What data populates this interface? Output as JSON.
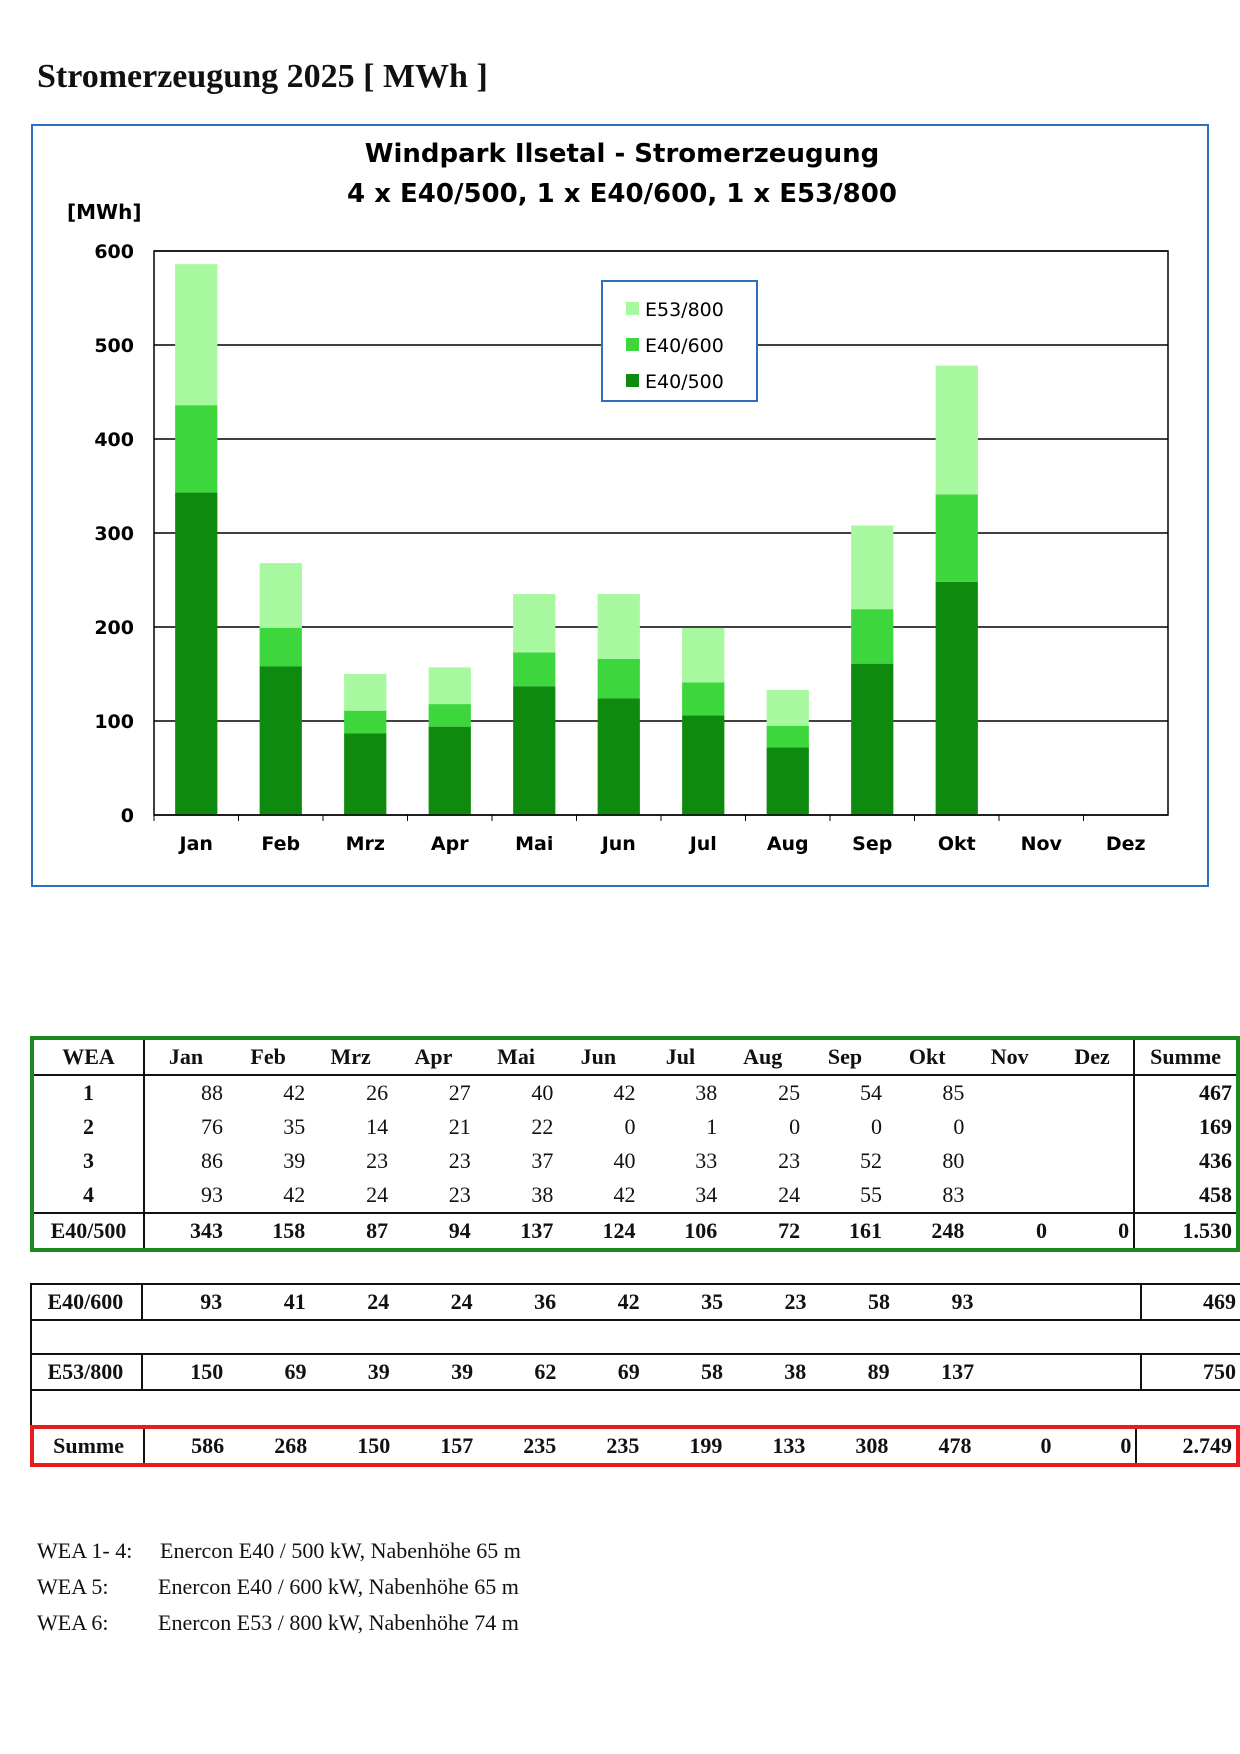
{
  "doc_title": "Stromerzeugung 2025 [ MWh ]",
  "chart_data": {
    "type": "bar",
    "stacked": true,
    "title": "Windpark Ilsetal  - Stromerzeugung",
    "subtitle": "4 x E40/500,  1 x E40/600, 1 x E53/800",
    "ylabel": "[MWh]",
    "xlabel": "",
    "ylim": [
      0,
      600
    ],
    "yticks": [
      "0",
      "100",
      "200",
      "300",
      "400",
      "500",
      "600"
    ],
    "ytick_values": [
      0,
      100,
      200,
      300,
      400,
      500,
      600
    ],
    "grid": true,
    "legend_position": "top-center",
    "categories": [
      "Jan",
      "Feb",
      "Mrz",
      "Apr",
      "Mai",
      "Jun",
      "Jul",
      "Aug",
      "Sep",
      "Okt",
      "Nov",
      "Dez"
    ],
    "series": [
      {
        "name": "E40/500",
        "color": "#0e8a0e",
        "values": [
          343,
          158,
          87,
          94,
          137,
          124,
          106,
          72,
          161,
          248,
          0,
          0
        ]
      },
      {
        "name": "E40/600",
        "color": "#3dd63d",
        "values": [
          93,
          41,
          24,
          24,
          36,
          42,
          35,
          23,
          58,
          93,
          0,
          0
        ]
      },
      {
        "name": "E53/800",
        "color": "#a8f8a0",
        "values": [
          150,
          69,
          39,
          39,
          62,
          69,
          58,
          38,
          89,
          137,
          0,
          0
        ]
      }
    ],
    "legend_order": [
      "E53/800",
      "E40/600",
      "E40/500"
    ]
  },
  "table": {
    "header": [
      "WEA",
      "Jan",
      "Feb",
      "Mrz",
      "Apr",
      "Mai",
      "Jun",
      "Jul",
      "Aug",
      "Sep",
      "Okt",
      "Nov",
      "Dez",
      "Summe"
    ],
    "wea_rows": [
      [
        "1",
        "88",
        "42",
        "26",
        "27",
        "40",
        "42",
        "38",
        "25",
        "54",
        "85",
        "",
        "",
        "467"
      ],
      [
        "2",
        "76",
        "35",
        "14",
        "21",
        "22",
        "0",
        "1",
        "0",
        "0",
        "0",
        "",
        "",
        "169"
      ],
      [
        "3",
        "86",
        "39",
        "23",
        "23",
        "37",
        "40",
        "33",
        "23",
        "52",
        "80",
        "",
        "",
        "436"
      ],
      [
        "4",
        "93",
        "42",
        "24",
        "23",
        "38",
        "42",
        "34",
        "24",
        "55",
        "83",
        "",
        "",
        "458"
      ]
    ],
    "e40_500": [
      "E40/500",
      "343",
      "158",
      "87",
      "94",
      "137",
      "124",
      "106",
      "72",
      "161",
      "248",
      "0",
      "0",
      "1.530"
    ],
    "e40_600": [
      "E40/600",
      "93",
      "41",
      "24",
      "24",
      "36",
      "42",
      "35",
      "23",
      "58",
      "93",
      "",
      "",
      "469"
    ],
    "e53_800": [
      "E53/800",
      "150",
      "69",
      "39",
      "39",
      "62",
      "69",
      "58",
      "38",
      "89",
      "137",
      "",
      "",
      "750"
    ],
    "summe": [
      "Summe",
      "586",
      "268",
      "150",
      "157",
      "235",
      "235",
      "199",
      "133",
      "308",
      "478",
      "0",
      "0",
      "2.749"
    ]
  },
  "notes": [
    {
      "label": "WEA 1- 4:",
      "text": "Enercon E40 / 500 kW, Nabenhöhe 65 m"
    },
    {
      "label": "WEA 5:",
      "text": "Enercon E40 / 600 kW, Nabenhöhe 65 m"
    },
    {
      "label": "WEA 6:",
      "text": "Enercon E53 / 800 kW, Nabenhöhe 74 m"
    }
  ]
}
